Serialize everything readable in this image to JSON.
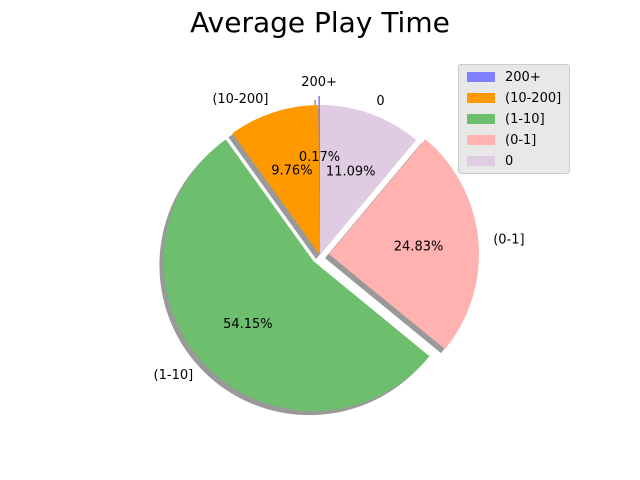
{
  "chart_data": {
    "type": "pie",
    "title": "Average Play Time",
    "slices": [
      {
        "label": "200+",
        "pct_label": "0.17%",
        "value": 0.17,
        "color": "#7f7fff",
        "exploded": true
      },
      {
        "label": "(10-200]",
        "pct_label": "9.76%",
        "value": 9.76,
        "color": "#ff9900",
        "exploded": false
      },
      {
        "label": "(1-10]",
        "pct_label": "54.15%",
        "value": 54.15,
        "color": "#6dbf6d",
        "exploded": true
      },
      {
        "label": "(0-1]",
        "pct_label": "24.83%",
        "value": 24.83,
        "color": "#ffb2b0",
        "exploded": true
      },
      {
        "label": "0",
        "pct_label": "11.09%",
        "value": 11.09,
        "color": "#dfcce3",
        "exploded": false
      }
    ],
    "start_angle_deg": 90,
    "direction": "counterclockwise",
    "shadow": true,
    "legend_placement": "top-right"
  },
  "legend": {
    "items": [
      {
        "label": "200+",
        "color": "#7f7fff"
      },
      {
        "label": "(10-200]",
        "color": "#ff9900"
      },
      {
        "label": "(1-10]",
        "color": "#6dbf6d"
      },
      {
        "label": "(0-1]",
        "color": "#ffb2b0"
      },
      {
        "label": "0",
        "color": "#dfcce3"
      }
    ]
  }
}
